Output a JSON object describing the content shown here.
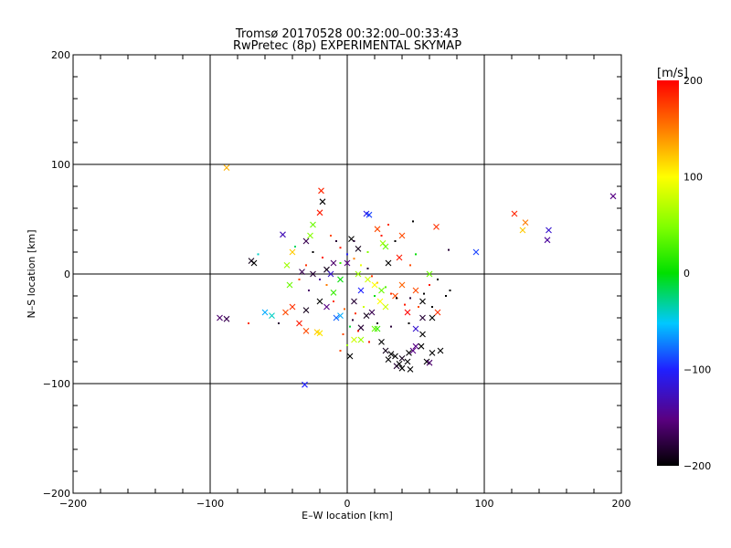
{
  "chart_data": {
    "type": "scatter",
    "title": "Tromsø 20170528 00:32:00–00:33:43",
    "subtitle": "RwPretec (8p) EXPERIMENTAL SKYMAP",
    "xlabel": "E–W location [km]",
    "ylabel": "N–S location [km]",
    "xlim": [
      -200,
      200
    ],
    "ylim": [
      -200,
      200
    ],
    "xticks": [
      -200,
      -100,
      0,
      100,
      200
    ],
    "yticks": [
      -200,
      -100,
      0,
      100,
      200
    ],
    "grid": true,
    "colorbar": {
      "label": "[m/s]",
      "range": [
        -200,
        200
      ],
      "ticks": [
        -200,
        -100,
        0,
        100,
        200
      ],
      "colormap": "rainbow (black–purple–blue–cyan–green–yellow–orange–red)"
    },
    "series": [
      {
        "marker": "x",
        "points": [
          [
            -88,
            97,
            130
          ],
          [
            -40,
            20,
            120
          ],
          [
            -93,
            -40,
            -160
          ],
          [
            -88,
            -41,
            -170
          ],
          [
            -70,
            12,
            -190
          ],
          [
            -68,
            10,
            -200
          ],
          [
            -60,
            -35,
            -60
          ],
          [
            -55,
            -38,
            -40
          ],
          [
            -45,
            -35,
            170
          ],
          [
            -40,
            -30,
            180
          ],
          [
            -44,
            8,
            60
          ],
          [
            -42,
            -10,
            40
          ],
          [
            -47,
            36,
            -130
          ],
          [
            -30,
            30,
            -170
          ],
          [
            -27,
            35,
            50
          ],
          [
            -25,
            45,
            40
          ],
          [
            -20,
            56,
            190
          ],
          [
            -18,
            66,
            -200
          ],
          [
            -19,
            76,
            185
          ],
          [
            -33,
            2,
            -170
          ],
          [
            -25,
            0,
            -180
          ],
          [
            -15,
            4,
            -190
          ],
          [
            -10,
            10,
            -160
          ],
          [
            -5,
            -5,
            0
          ],
          [
            3,
            32,
            -200
          ],
          [
            8,
            23,
            -190
          ],
          [
            14,
            55,
            -110
          ],
          [
            16,
            54,
            -90
          ],
          [
            22,
            41,
            170
          ],
          [
            26,
            28,
            60
          ],
          [
            28,
            25,
            40
          ],
          [
            40,
            35,
            170
          ],
          [
            65,
            43,
            180
          ],
          [
            94,
            20,
            -90
          ],
          [
            122,
            55,
            185
          ],
          [
            130,
            47,
            150
          ],
          [
            128,
            40,
            120
          ],
          [
            147,
            40,
            -120
          ],
          [
            146,
            31,
            -140
          ],
          [
            194,
            71,
            -150
          ],
          [
            -31,
            -101,
            -100
          ],
          [
            -30,
            -52,
            170
          ],
          [
            -35,
            -45,
            190
          ],
          [
            -22,
            -53,
            120
          ],
          [
            -20,
            -54,
            110
          ],
          [
            -8,
            -40,
            -80
          ],
          [
            -5,
            -38,
            -60
          ],
          [
            2,
            -75,
            -200
          ],
          [
            5,
            -60,
            80
          ],
          [
            10,
            -60,
            60
          ],
          [
            10,
            -49,
            -180
          ],
          [
            20,
            -50,
            40
          ],
          [
            22,
            -50,
            20
          ],
          [
            25,
            -62,
            -200
          ],
          [
            28,
            -70,
            -190
          ],
          [
            32,
            -73,
            -200
          ],
          [
            35,
            -75,
            -200
          ],
          [
            30,
            -78,
            -200
          ],
          [
            36,
            -84,
            -180
          ],
          [
            40,
            -86,
            -200
          ],
          [
            38,
            -82,
            -200
          ],
          [
            40,
            -77,
            -190
          ],
          [
            44,
            -80,
            -200
          ],
          [
            45,
            -72,
            -200
          ],
          [
            48,
            -70,
            -150
          ],
          [
            50,
            -66,
            -150
          ],
          [
            54,
            -66,
            -200
          ],
          [
            46,
            -87,
            -200
          ],
          [
            58,
            -80,
            -200
          ],
          [
            60,
            -81,
            -160
          ],
          [
            62,
            -72,
            -200
          ],
          [
            68,
            -70,
            -200
          ],
          [
            55,
            -55,
            -200
          ],
          [
            50,
            -50,
            -120
          ],
          [
            55,
            -40,
            -180
          ],
          [
            62,
            -40,
            -200
          ],
          [
            66,
            -35,
            180
          ],
          [
            44,
            -35,
            200
          ],
          [
            35,
            -20,
            170
          ],
          [
            24,
            -25,
            100
          ],
          [
            28,
            -30,
            80
          ],
          [
            40,
            -10,
            160
          ],
          [
            50,
            -15,
            170
          ],
          [
            55,
            -25,
            -200
          ],
          [
            -10,
            -17,
            20
          ],
          [
            -15,
            -30,
            -150
          ],
          [
            -20,
            -25,
            -200
          ],
          [
            -30,
            -33,
            -190
          ],
          [
            -12,
            0,
            -120
          ],
          [
            0,
            10,
            -150
          ],
          [
            8,
            0,
            60
          ],
          [
            15,
            -5,
            80
          ],
          [
            20,
            -10,
            100
          ],
          [
            25,
            -15,
            40
          ],
          [
            10,
            -15,
            -100
          ],
          [
            5,
            -25,
            -180
          ],
          [
            18,
            -35,
            -170
          ],
          [
            14,
            -38,
            -190
          ],
          [
            30,
            10,
            -200
          ],
          [
            38,
            15,
            190
          ],
          [
            60,
            0,
            40
          ]
        ]
      },
      {
        "marker": "dot",
        "points": [
          [
            -38,
            25,
            -20
          ],
          [
            -50,
            -45,
            -180
          ],
          [
            -12,
            35,
            170
          ],
          [
            -8,
            30,
            -180
          ],
          [
            -5,
            24,
            190
          ],
          [
            0,
            18,
            -100
          ],
          [
            5,
            14,
            150
          ],
          [
            10,
            8,
            90
          ],
          [
            15,
            5,
            -180
          ],
          [
            18,
            -2,
            180
          ],
          [
            22,
            -8,
            120
          ],
          [
            28,
            -12,
            30
          ],
          [
            32,
            -18,
            180
          ],
          [
            36,
            -22,
            -200
          ],
          [
            42,
            -28,
            190
          ],
          [
            46,
            -22,
            -180
          ],
          [
            52,
            -30,
            170
          ],
          [
            56,
            -18,
            -200
          ],
          [
            60,
            -10,
            190
          ],
          [
            66,
            -5,
            -200
          ],
          [
            72,
            -20,
            -200
          ],
          [
            74,
            22,
            -180
          ],
          [
            50,
            18,
            0
          ],
          [
            46,
            8,
            170
          ],
          [
            30,
            45,
            180
          ],
          [
            35,
            30,
            -200
          ],
          [
            15,
            20,
            50
          ],
          [
            5,
            30,
            -180
          ],
          [
            -5,
            10,
            20
          ],
          [
            -18,
            15,
            190
          ],
          [
            -25,
            20,
            -200
          ],
          [
            -30,
            8,
            180
          ],
          [
            -35,
            -5,
            170
          ],
          [
            -28,
            -15,
            -160
          ],
          [
            -20,
            -5,
            -140
          ],
          [
            -15,
            -10,
            150
          ],
          [
            -10,
            -25,
            180
          ],
          [
            -2,
            -32,
            160
          ],
          [
            4,
            -42,
            -180
          ],
          [
            8,
            -52,
            190
          ],
          [
            12,
            -30,
            80
          ],
          [
            20,
            -20,
            0
          ],
          [
            -3,
            -55,
            170
          ],
          [
            0,
            -65,
            60
          ],
          [
            -5,
            -70,
            170
          ],
          [
            2,
            -48,
            -10
          ],
          [
            6,
            -36,
            180
          ],
          [
            16,
            -62,
            190
          ],
          [
            22,
            -45,
            -190
          ],
          [
            32,
            -48,
            -180
          ],
          [
            45,
            -45,
            -200
          ],
          [
            62,
            -30,
            -200
          ],
          [
            75,
            -15,
            -200
          ],
          [
            25,
            35,
            190
          ],
          [
            48,
            48,
            -200
          ],
          [
            -65,
            18,
            -40
          ],
          [
            -72,
            -45,
            180
          ]
        ]
      }
    ]
  }
}
